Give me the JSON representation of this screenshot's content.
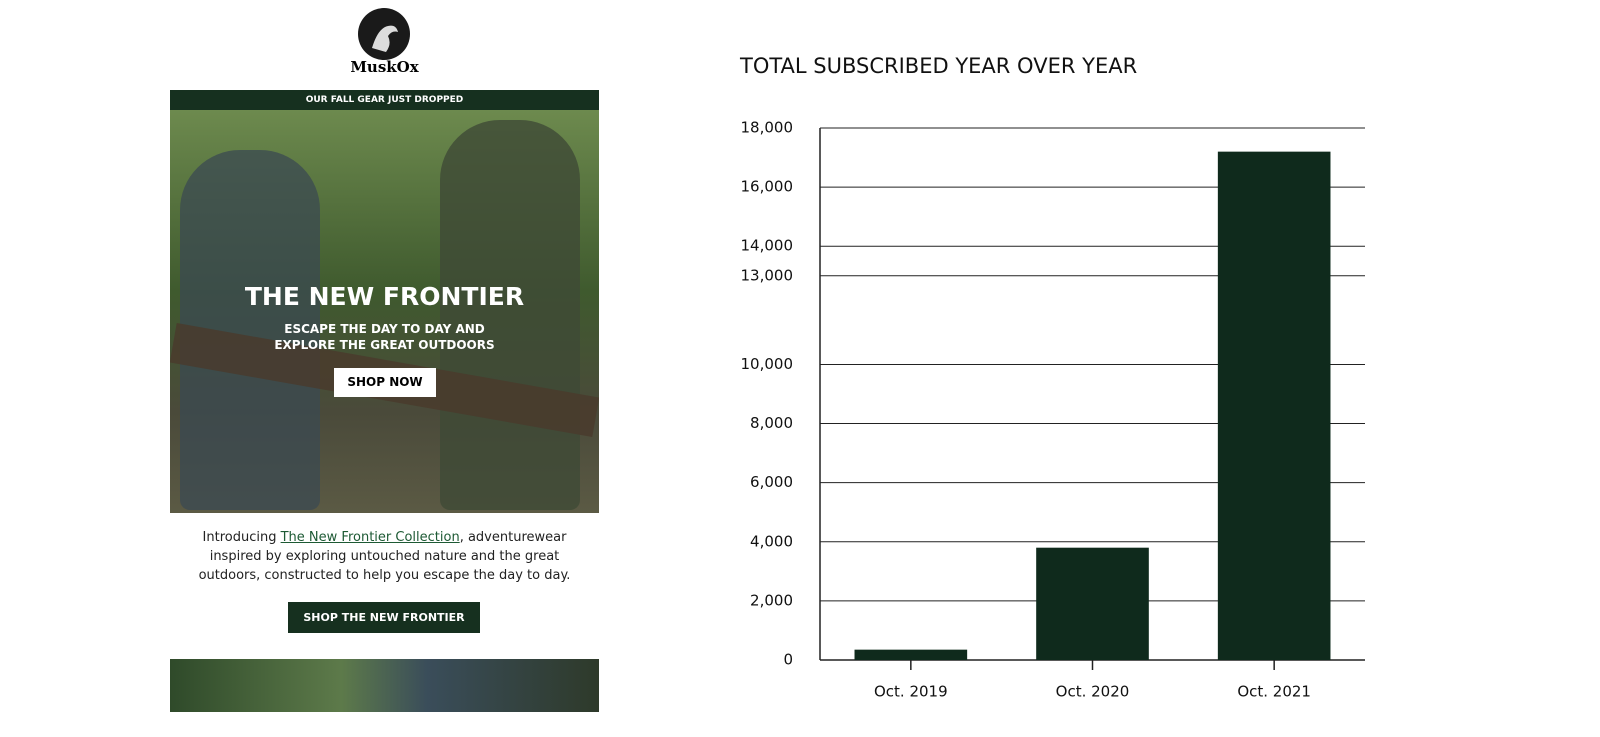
{
  "email": {
    "logo": "MuskOx",
    "banner": "OUR FALL GEAR JUST DROPPED",
    "hero_title": "THE NEW FRONTIER",
    "hero_subtitle_1": "ESCAPE THE DAY TO DAY AND",
    "hero_subtitle_2": "EXPLORE THE GREAT OUTDOORS",
    "hero_button": "SHOP NOW",
    "intro_start": "Introducing ",
    "intro_link": "The New Frontier Collection",
    "intro_end": ", adventurewear inspired by exploring untouched nature and the great outdoors, constructed to help you escape the day to day.",
    "button": "SHOP THE NEW FRONTIER"
  },
  "chart_data": {
    "type": "bar",
    "title": "TOTAL SUBSCRIBED YEAR OVER YEAR",
    "categories": [
      "Oct. 2019",
      "Oct. 2020",
      "Oct. 2021"
    ],
    "values": [
      350,
      3800,
      17200
    ],
    "color": "#0f2a1c",
    "ylim": [
      0,
      18000
    ],
    "yticks": [
      0,
      {
        "value": 2000,
        "label": "2,000"
      },
      {
        "value": 4000,
        "label": "4,000"
      },
      {
        "value": 6000,
        "label": "6,000"
      },
      {
        "value": 8000,
        "label": "8,000"
      },
      {
        "value": 10000,
        "label": "10,000"
      },
      {
        "value": 13000,
        "label": "13,000"
      },
      {
        "value": 14000,
        "label": "14,000"
      },
      {
        "value": 16000,
        "label": "16,000"
      },
      {
        "value": 18000,
        "label": "18,000"
      }
    ],
    "grid": true
  }
}
